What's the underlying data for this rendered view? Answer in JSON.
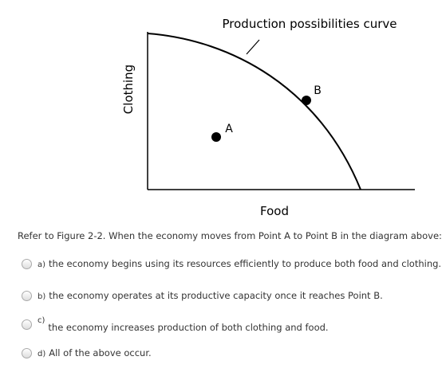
{
  "figure": {
    "title": "Production possibilities curve",
    "y_axis": "Clothing",
    "x_axis": "Food",
    "points": [
      "A",
      "B"
    ]
  },
  "question": "Refer to Figure 2-2. When the economy moves from Point A to Point B in the diagram above:",
  "options": [
    {
      "letter": "a)",
      "text": "the economy begins using its resources efficiently to produce both food and clothing."
    },
    {
      "letter": "b)",
      "text": "the economy operates at its productive capacity once it reaches Point B."
    },
    {
      "letter": "c)",
      "text": "the economy increases production of both clothing and food."
    },
    {
      "letter": "d)",
      "text": "All of the above occur."
    }
  ]
}
